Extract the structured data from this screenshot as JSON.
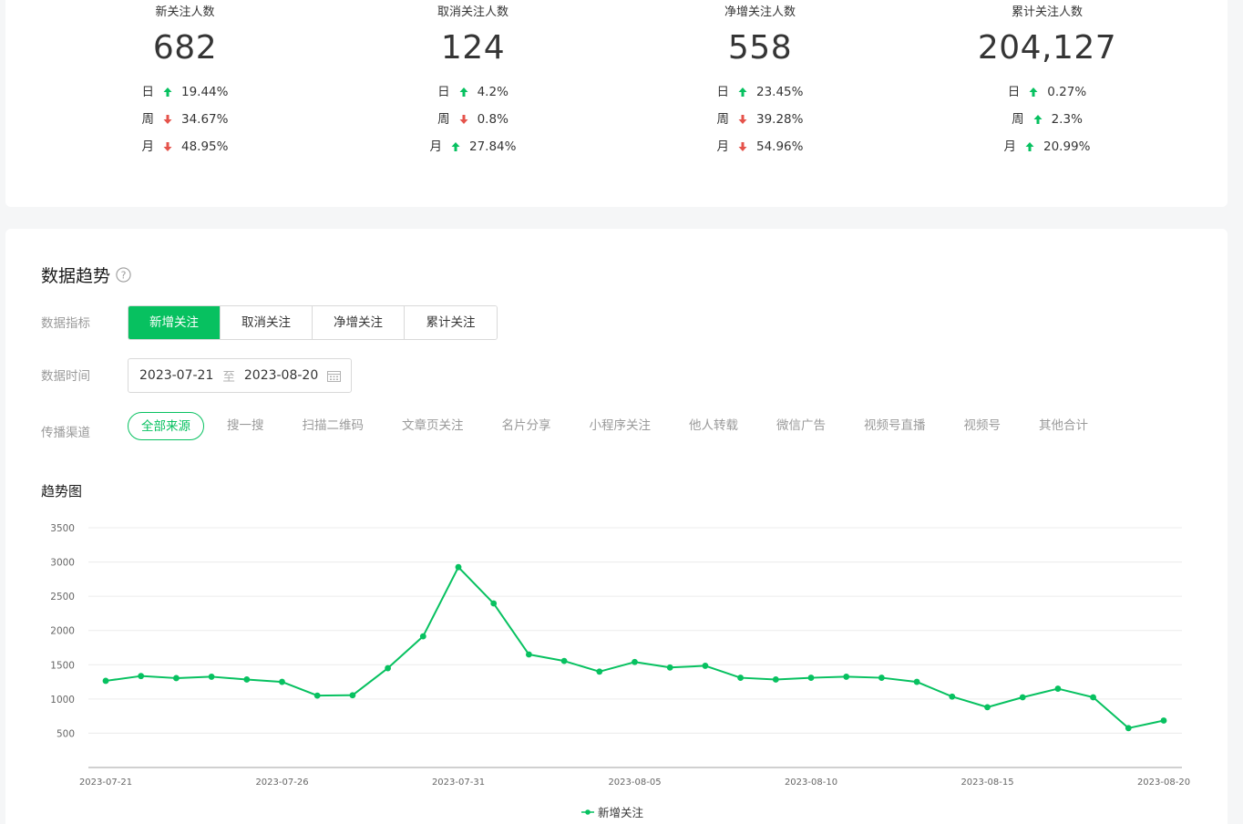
{
  "stats": [
    {
      "title": "新关注人数",
      "value": "682",
      "rows": [
        {
          "label": "日",
          "dir": "up",
          "pct": "19.44%"
        },
        {
          "label": "周",
          "dir": "down",
          "pct": "34.67%"
        },
        {
          "label": "月",
          "dir": "down",
          "pct": "48.95%"
        }
      ]
    },
    {
      "title": "取消关注人数",
      "value": "124",
      "rows": [
        {
          "label": "日",
          "dir": "up",
          "pct": "4.2%"
        },
        {
          "label": "周",
          "dir": "down",
          "pct": "0.8%"
        },
        {
          "label": "月",
          "dir": "up",
          "pct": "27.84%"
        }
      ]
    },
    {
      "title": "净增关注人数",
      "value": "558",
      "rows": [
        {
          "label": "日",
          "dir": "up",
          "pct": "23.45%"
        },
        {
          "label": "周",
          "dir": "down",
          "pct": "39.28%"
        },
        {
          "label": "月",
          "dir": "down",
          "pct": "54.96%"
        }
      ]
    },
    {
      "title": "累计关注人数",
      "value": "204,127",
      "rows": [
        {
          "label": "日",
          "dir": "up",
          "pct": "0.27%"
        },
        {
          "label": "周",
          "dir": "up",
          "pct": "2.3%"
        },
        {
          "label": "月",
          "dir": "up",
          "pct": "20.99%"
        }
      ]
    }
  ],
  "colors": {
    "accent": "#07c160",
    "up": "#07c160",
    "down": "#e5534b"
  },
  "trend": {
    "title": "数据趋势",
    "metric_label": "数据指标",
    "metrics": [
      "新增关注",
      "取消关注",
      "净增关注",
      "累计关注"
    ],
    "active_metric": 0,
    "time_label": "数据时间",
    "date_start": "2023-07-21",
    "date_sep": "至",
    "date_end": "2023-08-20",
    "channel_label": "传播渠道",
    "channels": [
      "全部来源",
      "搜一搜",
      "扫描二维码",
      "文章页关注",
      "名片分享",
      "小程序关注",
      "他人转载",
      "微信广告",
      "视频号直播",
      "视频号",
      "其他合计"
    ],
    "active_channel": 0,
    "chart_title": "趋势图"
  },
  "chart_data": {
    "type": "line",
    "x": [
      "2023-07-21",
      "2023-07-22",
      "2023-07-23",
      "2023-07-24",
      "2023-07-25",
      "2023-07-26",
      "2023-07-27",
      "2023-07-28",
      "2023-07-29",
      "2023-07-30",
      "2023-07-31",
      "2023-08-01",
      "2023-08-02",
      "2023-08-03",
      "2023-08-04",
      "2023-08-05",
      "2023-08-06",
      "2023-08-07",
      "2023-08-08",
      "2023-08-09",
      "2023-08-10",
      "2023-08-11",
      "2023-08-12",
      "2023-08-13",
      "2023-08-14",
      "2023-08-15",
      "2023-08-16",
      "2023-08-17",
      "2023-08-18",
      "2023-08-19",
      "2023-08-20"
    ],
    "x_tick_labels": [
      "2023-07-21",
      "2023-07-26",
      "2023-07-31",
      "2023-08-05",
      "2023-08-10",
      "2023-08-15",
      "2023-08-20"
    ],
    "series": [
      {
        "name": "新增关注",
        "values": [
          1265,
          1335,
          1305,
          1325,
          1285,
          1250,
          1050,
          1055,
          1450,
          1915,
          2925,
          2395,
          1650,
          1555,
          1400,
          1540,
          1460,
          1485,
          1310,
          1285,
          1310,
          1325,
          1310,
          1250,
          1035,
          880,
          1025,
          1150,
          1025,
          575,
          685
        ]
      }
    ],
    "ylim": [
      0,
      3500
    ],
    "yticks": [
      500,
      1000,
      1500,
      2000,
      2500,
      3000,
      3500
    ],
    "grid": true,
    "legend": "bottom-center"
  }
}
